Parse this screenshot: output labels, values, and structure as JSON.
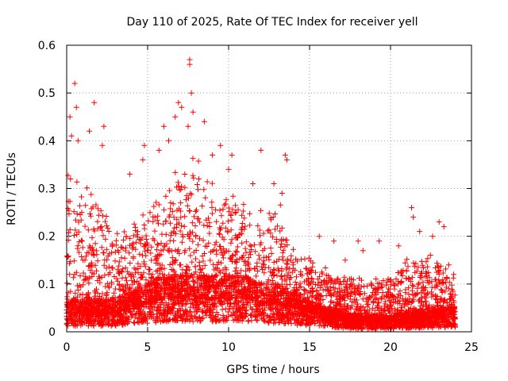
{
  "chart_data": {
    "type": "scatter",
    "title": "Day 110 of 2025, Rate Of TEC Index for receiver yell",
    "xlabel": "GPS time / hours",
    "ylabel": "ROTI / TECUs",
    "xlim": [
      0,
      25
    ],
    "ylim": [
      0,
      0.6
    ],
    "xticks": [
      0,
      5,
      10,
      15,
      20,
      25
    ],
    "yticks": [
      0,
      0.1,
      0.2,
      0.3,
      0.4,
      0.5,
      0.6
    ],
    "xtick_labels": [
      "0",
      "5",
      "10",
      "15",
      "20",
      "25"
    ],
    "ytick_labels": [
      "0",
      "0.1",
      "0.2",
      "0.3",
      "0.4",
      "0.5",
      "0.6"
    ],
    "grid": true,
    "marker": "+",
    "color": "#ff0000",
    "series": [
      {
        "name": "ROTI",
        "envelope_hours": [
          0,
          1,
          2,
          3,
          4,
          5,
          6,
          7,
          8,
          9,
          10,
          11,
          12,
          13,
          14,
          15,
          16,
          17,
          18,
          19,
          20,
          21,
          22,
          23,
          24
        ],
        "typical_max": [
          0.3,
          0.28,
          0.25,
          0.2,
          0.2,
          0.23,
          0.26,
          0.32,
          0.33,
          0.28,
          0.27,
          0.24,
          0.23,
          0.26,
          0.18,
          0.14,
          0.12,
          0.11,
          0.1,
          0.1,
          0.11,
          0.14,
          0.14,
          0.15,
          0.1
        ],
        "baseline": [
          0.04,
          0.04,
          0.04,
          0.04,
          0.05,
          0.06,
          0.07,
          0.07,
          0.07,
          0.07,
          0.07,
          0.07,
          0.06,
          0.06,
          0.05,
          0.04,
          0.03,
          0.025,
          0.02,
          0.02,
          0.02,
          0.025,
          0.025,
          0.03,
          0.03
        ],
        "notable_points": [
          {
            "x": 0.2,
            "y": 0.45
          },
          {
            "x": 0.3,
            "y": 0.41
          },
          {
            "x": 0.5,
            "y": 0.52
          },
          {
            "x": 0.6,
            "y": 0.47
          },
          {
            "x": 0.7,
            "y": 0.4
          },
          {
            "x": 1.4,
            "y": 0.42
          },
          {
            "x": 1.7,
            "y": 0.48
          },
          {
            "x": 2.3,
            "y": 0.43
          },
          {
            "x": 2.2,
            "y": 0.39
          },
          {
            "x": 3.9,
            "y": 0.33
          },
          {
            "x": 4.7,
            "y": 0.36
          },
          {
            "x": 4.8,
            "y": 0.39
          },
          {
            "x": 5.7,
            "y": 0.38
          },
          {
            "x": 6.0,
            "y": 0.43
          },
          {
            "x": 6.3,
            "y": 0.4
          },
          {
            "x": 6.7,
            "y": 0.45
          },
          {
            "x": 6.9,
            "y": 0.48
          },
          {
            "x": 7.1,
            "y": 0.47
          },
          {
            "x": 7.6,
            "y": 0.57
          },
          {
            "x": 7.6,
            "y": 0.56
          },
          {
            "x": 7.7,
            "y": 0.5
          },
          {
            "x": 7.8,
            "y": 0.46
          },
          {
            "x": 7.5,
            "y": 0.43
          },
          {
            "x": 8.5,
            "y": 0.44
          },
          {
            "x": 9.0,
            "y": 0.37
          },
          {
            "x": 9.5,
            "y": 0.39
          },
          {
            "x": 10.2,
            "y": 0.37
          },
          {
            "x": 10.0,
            "y": 0.34
          },
          {
            "x": 11.5,
            "y": 0.31
          },
          {
            "x": 12.0,
            "y": 0.38
          },
          {
            "x": 12.8,
            "y": 0.31
          },
          {
            "x": 13.5,
            "y": 0.37
          },
          {
            "x": 13.6,
            "y": 0.36
          },
          {
            "x": 13.3,
            "y": 0.29
          },
          {
            "x": 15.6,
            "y": 0.2
          },
          {
            "x": 16.5,
            "y": 0.19
          },
          {
            "x": 17.2,
            "y": 0.15
          },
          {
            "x": 18.0,
            "y": 0.19
          },
          {
            "x": 18.3,
            "y": 0.17
          },
          {
            "x": 19.3,
            "y": 0.19
          },
          {
            "x": 20.5,
            "y": 0.18
          },
          {
            "x": 21.3,
            "y": 0.26
          },
          {
            "x": 21.4,
            "y": 0.24
          },
          {
            "x": 21.8,
            "y": 0.21
          },
          {
            "x": 22.6,
            "y": 0.2
          },
          {
            "x": 23.0,
            "y": 0.23
          },
          {
            "x": 23.3,
            "y": 0.22
          },
          {
            "x": 23.6,
            "y": 0.14
          },
          {
            "x": 23.9,
            "y": 0.12
          }
        ]
      }
    ]
  }
}
